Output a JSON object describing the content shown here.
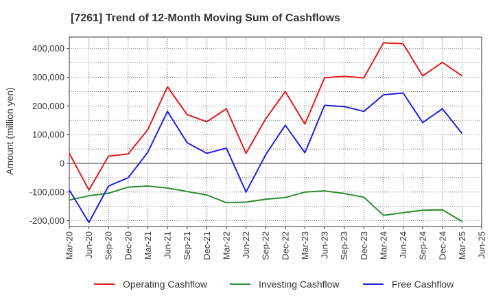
{
  "chart_data": {
    "type": "line",
    "title": "[7261]  Trend of 12-Month Moving Sum of Cashflows",
    "xlabel": "",
    "ylabel": "Amount (million yen)",
    "categories": [
      "Mar-20",
      "Jun-20",
      "Sep-20",
      "Dec-20",
      "Mar-21",
      "Jun-21",
      "Sep-21",
      "Dec-21",
      "Mar-22",
      "Jun-22",
      "Sep-22",
      "Dec-22",
      "Mar-23",
      "Jun-23",
      "Sep-23",
      "Dec-23",
      "Mar-24",
      "Jun-24",
      "Sep-24",
      "Dec-24",
      "Mar-25",
      "Jun-25"
    ],
    "ylim": [
      -220000,
      440000
    ],
    "yticks": [
      -200000,
      -100000,
      0,
      100000,
      200000,
      300000,
      400000
    ],
    "ytick_labels": [
      "-200,000",
      "-100,000",
      "0",
      "100,000",
      "200,000",
      "300,000",
      "400,000"
    ],
    "grid": true,
    "legend_position": "bottom",
    "series": [
      {
        "name": "Operating Cashflow",
        "color": "#e41a1c",
        "values": [
          35000,
          -93000,
          25000,
          33000,
          118000,
          267000,
          170000,
          145000,
          190000,
          35000,
          155000,
          250000,
          137000,
          298000,
          303000,
          298000,
          420000,
          417000,
          305000,
          352000,
          305000,
          null
        ]
      },
      {
        "name": "Investing Cashflow",
        "color": "#2e8b2e",
        "values": [
          -128000,
          -113000,
          -104000,
          -83000,
          -79000,
          -86000,
          -98000,
          -110000,
          -137000,
          -135000,
          -125000,
          -119000,
          -100000,
          -96000,
          -105000,
          -118000,
          -181000,
          -172000,
          -163000,
          -162000,
          -202000,
          null
        ]
      },
      {
        "name": "Free Cashflow",
        "color": "#1f1fdf",
        "values": [
          -93000,
          -206000,
          -79000,
          -50000,
          39000,
          181000,
          72000,
          35000,
          53000,
          -100000,
          30000,
          133000,
          37000,
          202000,
          198000,
          181000,
          239000,
          245000,
          142000,
          190000,
          104000,
          null
        ]
      }
    ]
  }
}
